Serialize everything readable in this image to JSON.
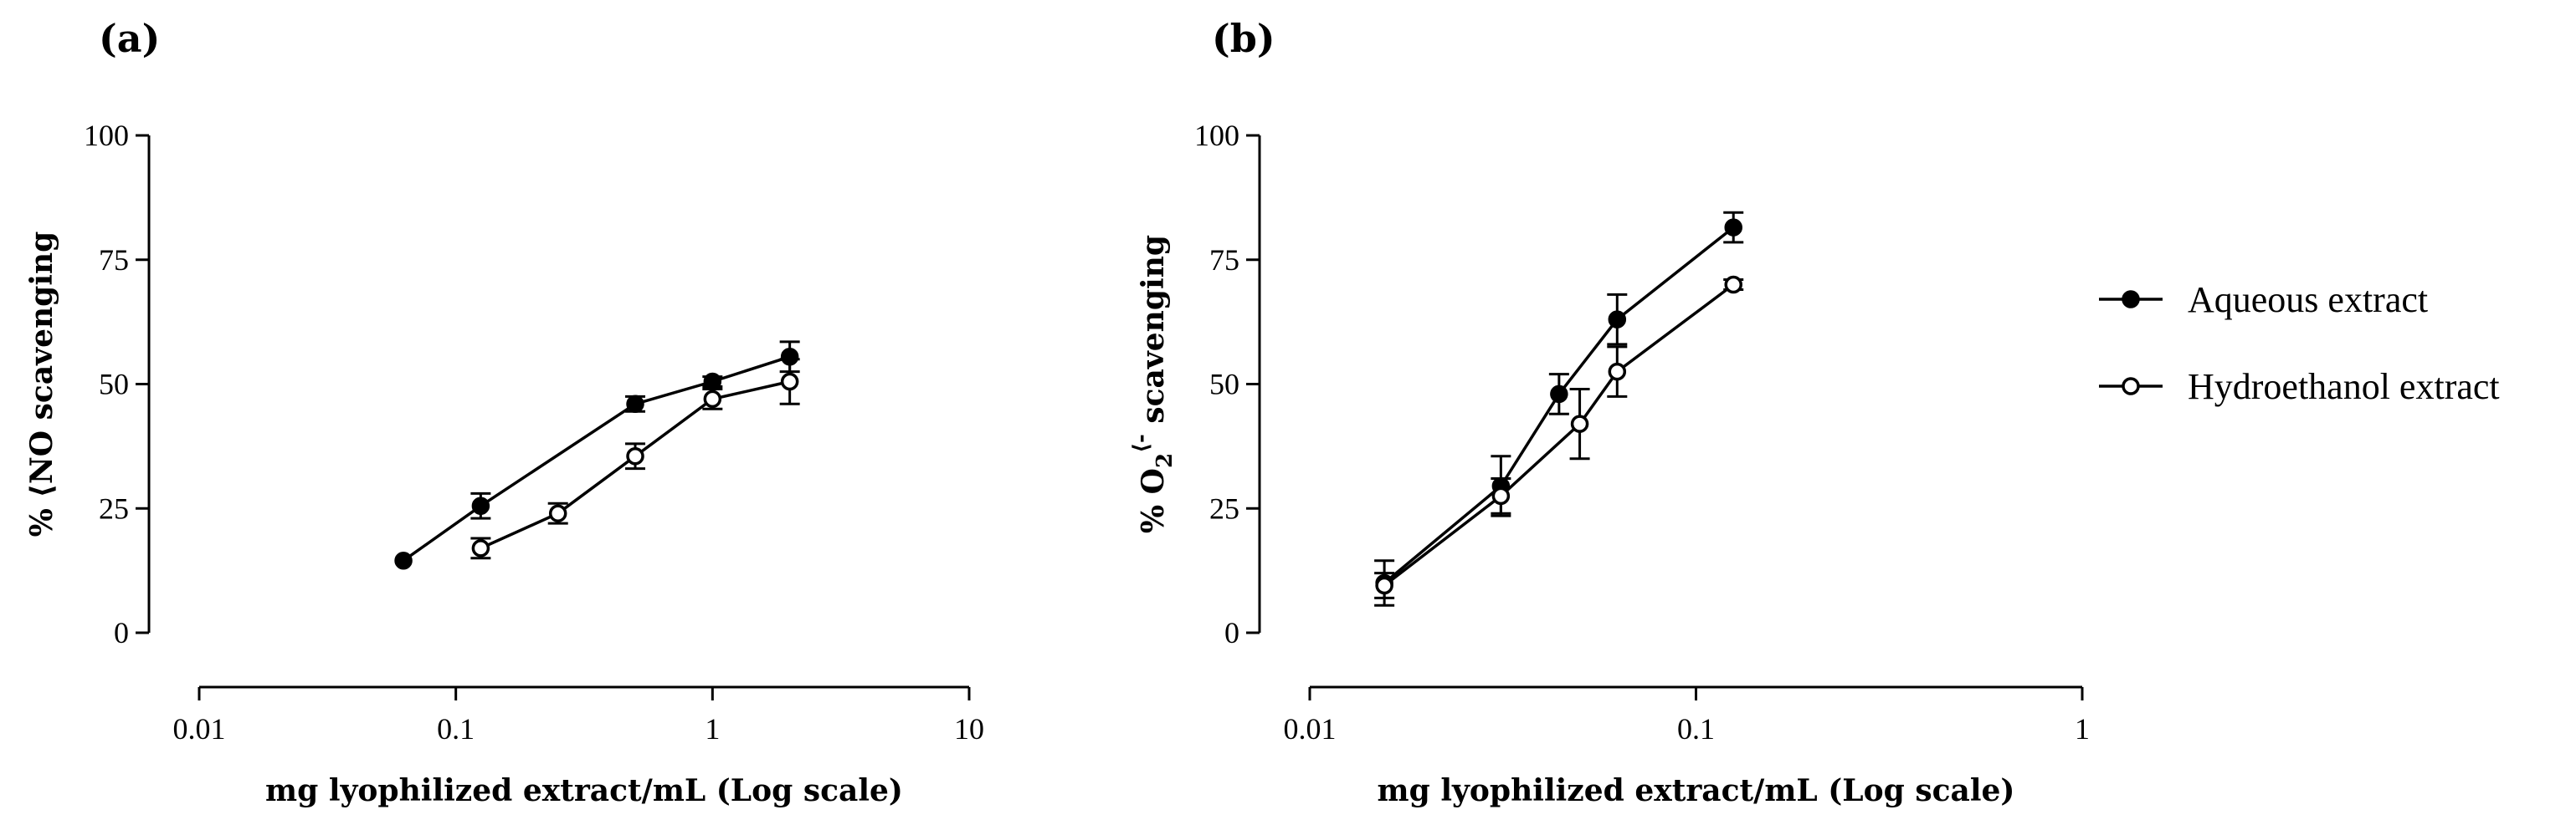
{
  "chart_data": [
    {
      "type": "line",
      "panel_label": "(a)",
      "xscale": "log",
      "xlim": [
        0.01,
        10
      ],
      "ylim": [
        0,
        100
      ],
      "xticks": [
        0.01,
        0.1,
        1,
        10
      ],
      "xtick_labels": [
        "0.01",
        "0.1",
        "1",
        "10"
      ],
      "yticks": [
        0,
        25,
        50,
        75,
        100
      ],
      "ytick_labels": [
        "0",
        "25",
        "50",
        "75",
        "100"
      ],
      "xlabel": "mg lyophilized extract/mL (Log scale)",
      "ylabel": "% ⟨NO scavenging",
      "series": [
        {
          "name": "Aqueous extract",
          "marker": "filled",
          "x": [
            0.0625,
            0.125,
            0.5,
            1,
            2
          ],
          "y": [
            14.5,
            25.5,
            46,
            50.5,
            55.5
          ],
          "err": [
            0,
            2.5,
            1.5,
            1,
            3
          ]
        },
        {
          "name": "Hydroethanol extract",
          "marker": "open",
          "x": [
            0.125,
            0.25,
            0.5,
            1,
            2
          ],
          "y": [
            17,
            24,
            35.5,
            47,
            50.5
          ],
          "err": [
            2,
            2,
            2.5,
            2,
            4.5
          ]
        }
      ]
    },
    {
      "type": "line",
      "panel_label": "(b)",
      "xscale": "log",
      "xlim": [
        0.01,
        1
      ],
      "ylim": [
        0,
        100
      ],
      "xticks": [
        0.01,
        0.1,
        1
      ],
      "xtick_labels": [
        "0.01",
        "0.1",
        "1"
      ],
      "yticks": [
        0,
        25,
        50,
        75,
        100
      ],
      "ytick_labels": [
        "0",
        "25",
        "50",
        "75",
        "100"
      ],
      "xlabel": "mg lyophilized extract/mL (Log scale)",
      "ylabel_prefix": "% O",
      "ylabel_sub": "2",
      "ylabel_sup": "⟨-",
      "ylabel_suffix": " scavenging",
      "series": [
        {
          "name": "Aqueous extract",
          "marker": "filled",
          "x": [
            0.0156,
            0.03125,
            0.0442,
            0.0625,
            0.125
          ],
          "y": [
            10,
            29.5,
            48,
            63,
            81.5
          ],
          "err": [
            4.5,
            6,
            4,
            5,
            3
          ]
        },
        {
          "name": "Hydroethanol extract",
          "marker": "open",
          "x": [
            0.0156,
            0.03125,
            0.05,
            0.0625,
            0.125
          ],
          "y": [
            9.5,
            27.5,
            42,
            52.5,
            70
          ],
          "err": [
            2.5,
            3.5,
            7,
            5,
            1
          ]
        }
      ]
    }
  ],
  "legend": {
    "position": "right",
    "entries": [
      {
        "label": "Aqueous extract",
        "marker": "filled"
      },
      {
        "label": "Hydroethanol extract",
        "marker": "open"
      }
    ]
  }
}
